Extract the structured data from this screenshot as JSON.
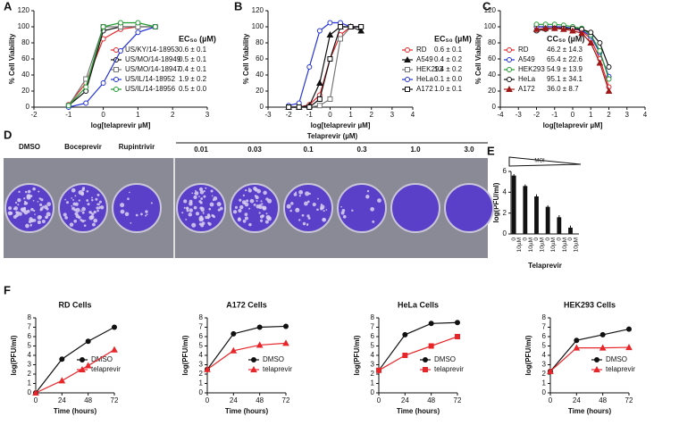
{
  "chart_data": [
    {
      "type": "line",
      "panel_label": "A",
      "xlabel": "log[telaprevir µM]",
      "ylabel": "% Cell Viability",
      "xlim": [
        -2,
        3
      ],
      "xticks": [
        -2,
        -1,
        0,
        1,
        2,
        3
      ],
      "ylim": [
        0,
        120
      ],
      "yticks": [
        0,
        20,
        40,
        60,
        80,
        100,
        120
      ],
      "legend_title": "EC₅₀ (µM)",
      "x": [
        -1,
        -0.5,
        0,
        0.5,
        1,
        1.5
      ],
      "series": [
        {
          "name": "US/KY/14-18953",
          "annotation": "0.6 ± 0.1",
          "color": "#e8262a",
          "marker": "circle-open",
          "values": [
            3,
            30,
            85,
            97,
            100,
            null
          ]
        },
        {
          "name": "US/MO/14-18949",
          "annotation": "0.5 ± 0.1",
          "color": "#111111",
          "marker": "circle-open",
          "values": [
            2,
            20,
            95,
            100,
            100,
            100
          ]
        },
        {
          "name": "US/MO/14-18947",
          "annotation": "0.4 ± 0.1",
          "color": "#777777",
          "marker": "square-open",
          "values": [
            2,
            35,
            100,
            100,
            100,
            100
          ]
        },
        {
          "name": "US/IL/14-18952",
          "annotation": "1.9 ± 0.2",
          "color": "#2433d6",
          "marker": "circle-open",
          "values": [
            0,
            5,
            30,
            70,
            93,
            100
          ]
        },
        {
          "name": "US/IL/14-18956",
          "annotation": "0.5 ± 0.0",
          "color": "#1f9a2e",
          "marker": "circle-open",
          "values": [
            2,
            25,
            100,
            105,
            105,
            100
          ]
        }
      ]
    },
    {
      "type": "line",
      "panel_label": "B",
      "xlabel": "log[telaprevir µM]",
      "ylabel": "% Cell Viability",
      "xlim": [
        -3,
        4
      ],
      "xticks": [
        -3,
        -2,
        -1,
        0,
        1,
        2,
        3,
        4
      ],
      "ylim": [
        0,
        120
      ],
      "yticks": [
        0,
        20,
        40,
        60,
        80,
        100,
        120
      ],
      "legend_title": "EC₅₀ (µM)",
      "x": [
        -2,
        -1.5,
        -1,
        -0.5,
        0,
        0.5,
        1,
        1.5
      ],
      "series": [
        {
          "name": "RD",
          "annotation": "0.6 ± 0.1",
          "color": "#e8262a",
          "marker": "circle-open",
          "values": [
            0,
            0,
            3,
            15,
            60,
            90,
            100,
            100
          ]
        },
        {
          "name": "A549",
          "annotation": "0.4 ± 0.2",
          "color": "#111111",
          "marker": "triangle",
          "values": [
            0,
            0,
            2,
            30,
            90,
            100,
            100,
            95
          ]
        },
        {
          "name": "HEK293",
          "annotation": "1.4 ± 0.2",
          "color": "#777777",
          "marker": "square-open",
          "values": [
            0,
            0,
            0,
            2,
            10,
            85,
            100,
            100
          ]
        },
        {
          "name": "HeLa",
          "annotation": "0.1 ± 0.0",
          "color": "#2433d6",
          "marker": "circle-open",
          "values": [
            2,
            5,
            50,
            95,
            105,
            105,
            100,
            100
          ]
        },
        {
          "name": "A172",
          "annotation": "1.0 ± 0.1",
          "color": "#111111",
          "marker": "square-open",
          "values": [
            0,
            0,
            0,
            10,
            60,
            100,
            100,
            100
          ]
        }
      ]
    },
    {
      "type": "line",
      "panel_label": "C",
      "xlabel": "log[telaprevir µM]",
      "ylabel": "% Cell Viability",
      "xlim": [
        -4,
        4
      ],
      "xticks": [
        -4,
        -3,
        -2,
        -1,
        0,
        1,
        2,
        3,
        4
      ],
      "ylim": [
        0,
        120
      ],
      "yticks": [
        0,
        20,
        40,
        60,
        80,
        100,
        120
      ],
      "legend_title": "CC₅₀ (µM)",
      "x": [
        -2,
        -1.5,
        -1,
        -0.5,
        0,
        0.5,
        1,
        1.5,
        2
      ],
      "series": [
        {
          "name": "RD",
          "annotation": "46.2 ± 14.3",
          "color": "#e8262a",
          "marker": "circle-open",
          "values": [
            100,
            100,
            100,
            98,
            97,
            95,
            85,
            60,
            25
          ]
        },
        {
          "name": "A549",
          "annotation": "65.4 ± 22.6",
          "color": "#2433d6",
          "marker": "circle-open",
          "values": [
            100,
            100,
            100,
            100,
            98,
            96,
            88,
            68,
            38
          ]
        },
        {
          "name": "HEK293",
          "annotation": "54.9 ± 13.9",
          "color": "#1f9a2e",
          "marker": "circle-open",
          "values": [
            103,
            103,
            103,
            102,
            100,
            98,
            90,
            70,
            35
          ]
        },
        {
          "name": "HeLa",
          "annotation": "95.1 ± 34.1",
          "color": "#111111",
          "marker": "circle-open",
          "values": [
            95,
            97,
            98,
            98,
            98,
            97,
            93,
            80,
            50
          ]
        },
        {
          "name": "A172",
          "annotation": "36.0 ± 8.7",
          "color": "#a01818",
          "marker": "triangle",
          "values": [
            97,
            98,
            98,
            97,
            95,
            92,
            80,
            55,
            20
          ]
        }
      ]
    },
    {
      "type": "bar",
      "panel_label": "E",
      "xlabel": "Telaprevir",
      "ylabel": "log(PFU/ml)",
      "moi_label": "MOI",
      "ylim": [
        0,
        6
      ],
      "yticks": [
        0,
        2,
        4,
        6
      ],
      "color": "#111111",
      "categories": [
        "0",
        "10µM",
        "0",
        "10µM",
        "0",
        "10µM",
        "0",
        "10µM",
        "0",
        "10µM",
        "0",
        "10µM"
      ],
      "values": [
        5.6,
        0,
        4.6,
        0,
        3.6,
        0,
        2.6,
        0,
        1.6,
        0,
        0.6,
        0
      ],
      "errors": [
        0.15,
        0,
        0.15,
        0,
        0.2,
        0,
        0.15,
        0,
        0.2,
        0,
        0.2,
        0
      ]
    },
    {
      "type": "line",
      "panel_label": "F",
      "title": "RD Cells",
      "xlabel": "Time (hours)",
      "ylabel": "log(PFU/ml)",
      "xlim": [
        0,
        72
      ],
      "xticks": [
        0,
        24,
        48,
        72
      ],
      "ylim": [
        0,
        8
      ],
      "yticks": [
        0,
        1,
        2,
        3,
        4,
        5,
        6,
        7,
        8
      ],
      "x": [
        0,
        24,
        48,
        72
      ],
      "series": [
        {
          "name": "DMSO",
          "color": "#111111",
          "marker": "circle",
          "values": [
            0,
            3.6,
            5.5,
            7.0
          ]
        },
        {
          "name": "telaprevir",
          "color": "#e8262a",
          "marker": "triangle",
          "values": [
            0,
            1.3,
            2.9,
            4.6
          ]
        }
      ]
    },
    {
      "type": "line",
      "title": "A172 Cells",
      "xlabel": "Time (hours)",
      "ylabel": "log(PFU/ml)",
      "xlim": [
        0,
        72
      ],
      "xticks": [
        0,
        24,
        48,
        72
      ],
      "ylim": [
        0,
        8
      ],
      "yticks": [
        0,
        1,
        2,
        3,
        4,
        5,
        6,
        7,
        8
      ],
      "x": [
        0,
        24,
        48,
        72
      ],
      "series": [
        {
          "name": "DMSO",
          "color": "#111111",
          "marker": "circle",
          "values": [
            2.5,
            6.3,
            7.0,
            7.1
          ]
        },
        {
          "name": "telaprevir",
          "color": "#e8262a",
          "marker": "triangle",
          "values": [
            2.5,
            4.5,
            5.1,
            5.3
          ]
        }
      ]
    },
    {
      "type": "line",
      "title": "HeLa Cells",
      "xlabel": "Time (hours)",
      "ylabel": "log(PFU/ml)",
      "xlim": [
        0,
        72
      ],
      "xticks": [
        0,
        24,
        48,
        72
      ],
      "ylim": [
        0,
        8
      ],
      "yticks": [
        0,
        1,
        2,
        3,
        4,
        5,
        6,
        7,
        8
      ],
      "x": [
        0,
        24,
        48,
        72
      ],
      "series": [
        {
          "name": "DMSO",
          "color": "#111111",
          "marker": "circle",
          "values": [
            2.4,
            6.2,
            7.4,
            7.5
          ]
        },
        {
          "name": "telaprevir",
          "color": "#e8262a",
          "marker": "square",
          "values": [
            2.4,
            4.0,
            5.0,
            6.0
          ]
        }
      ]
    },
    {
      "type": "line",
      "title": "HEK293 Cells",
      "xlabel": "Time (hours)",
      "ylabel": "log(PFU/ml)",
      "xlim": [
        0,
        72
      ],
      "xticks": [
        0,
        24,
        48,
        72
      ],
      "ylim": [
        0,
        8
      ],
      "yticks": [
        0,
        1,
        2,
        3,
        4,
        5,
        6,
        7,
        8
      ],
      "x": [
        0,
        24,
        48,
        72
      ],
      "series": [
        {
          "name": "DMSO",
          "color": "#111111",
          "marker": "circle",
          "values": [
            2.3,
            5.6,
            6.2,
            6.8
          ]
        },
        {
          "name": "telaprevir",
          "color": "#e8262a",
          "marker": "triangle",
          "values": [
            2.3,
            4.8,
            4.8,
            4.85
          ]
        }
      ]
    }
  ],
  "plate_assay": {
    "panel_label": "D",
    "group_label": "Telaprevir (µM)",
    "wells": [
      "DMSO",
      "Boceprevir",
      "Rupintrivir",
      "0.01",
      "0.03",
      "0.1",
      "0.3",
      "1.0",
      "3.0"
    ]
  }
}
